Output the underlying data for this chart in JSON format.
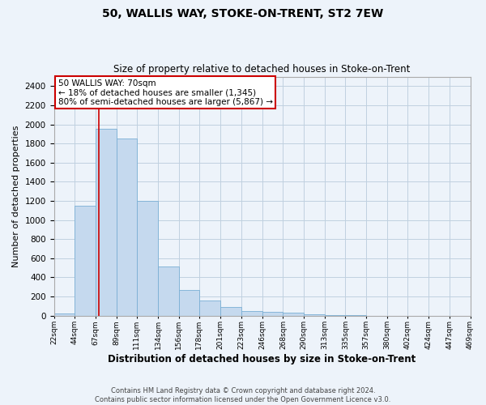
{
  "title1": "50, WALLIS WAY, STOKE-ON-TRENT, ST2 7EW",
  "title2": "Size of property relative to detached houses in Stoke-on-Trent",
  "xlabel": "Distribution of detached houses by size in Stoke-on-Trent",
  "ylabel": "Number of detached properties",
  "footer1": "Contains HM Land Registry data © Crown copyright and database right 2024.",
  "footer2": "Contains public sector information licensed under the Open Government Licence v3.0.",
  "bin_labels": [
    "22sqm",
    "44sqm",
    "67sqm",
    "89sqm",
    "111sqm",
    "134sqm",
    "156sqm",
    "178sqm",
    "201sqm",
    "223sqm",
    "246sqm",
    "268sqm",
    "290sqm",
    "313sqm",
    "335sqm",
    "357sqm",
    "380sqm",
    "402sqm",
    "424sqm",
    "447sqm",
    "469sqm"
  ],
  "bin_edges": [
    22,
    44,
    67,
    89,
    111,
    134,
    156,
    178,
    201,
    223,
    246,
    268,
    290,
    313,
    335,
    357,
    380,
    402,
    424,
    447,
    469
  ],
  "values": [
    25,
    1150,
    1950,
    1850,
    1200,
    510,
    265,
    155,
    90,
    45,
    35,
    30,
    15,
    5,
    2,
    0,
    0,
    0,
    0,
    0
  ],
  "bar_color": "#c5d9ee",
  "bar_edge_color": "#7aafd4",
  "grid_color": "#c0d0e0",
  "background_color": "#edf3fa",
  "annotation_text": "50 WALLIS WAY: 70sqm\n← 18% of detached houses are smaller (1,345)\n80% of semi-detached houses are larger (5,867) →",
  "annotation_box_facecolor": "#ffffff",
  "annotation_box_edgecolor": "#cc0000",
  "property_line_x": 70,
  "property_line_color": "#cc0000",
  "ylim": [
    0,
    2500
  ],
  "yticks": [
    0,
    200,
    400,
    600,
    800,
    1000,
    1200,
    1400,
    1600,
    1800,
    2000,
    2200,
    2400
  ],
  "title1_fontsize": 10,
  "title2_fontsize": 8.5,
  "xlabel_fontsize": 8.5,
  "ylabel_fontsize": 8,
  "xtick_fontsize": 6.5,
  "ytick_fontsize": 7.5,
  "footer_fontsize": 6,
  "annot_fontsize": 7.5
}
